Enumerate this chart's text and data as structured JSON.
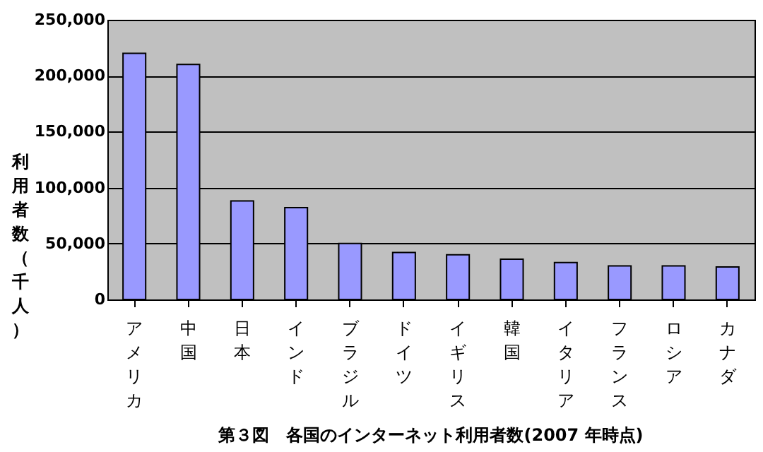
{
  "chart_data": {
    "type": "bar",
    "title": "第３図　各国のインターネット利用者数(2007 年時点)",
    "ylabel": "利用者数（千人）",
    "categories": [
      "アメリカ",
      "中国",
      "日本",
      "インド",
      "ブラジル",
      "ドイツ",
      "イギリス",
      "韓国",
      "イタリア",
      "フランス",
      "ロシア",
      "カナダ"
    ],
    "values": [
      220000,
      210000,
      88000,
      82000,
      50000,
      42000,
      40000,
      36000,
      33000,
      30000,
      30000,
      29000
    ],
    "color": "#9999ff",
    "ylim": [
      0,
      250000
    ],
    "yticks": [
      0,
      {
        "value": 50000,
        "label": "50,000"
      },
      {
        "value": 100000,
        "label": "100,000"
      },
      {
        "value": 150000,
        "label": "150,000"
      },
      {
        "value": 200000,
        "label": "200,000"
      },
      {
        "value": 250000,
        "label": "250,000"
      }
    ],
    "grid": "y"
  }
}
